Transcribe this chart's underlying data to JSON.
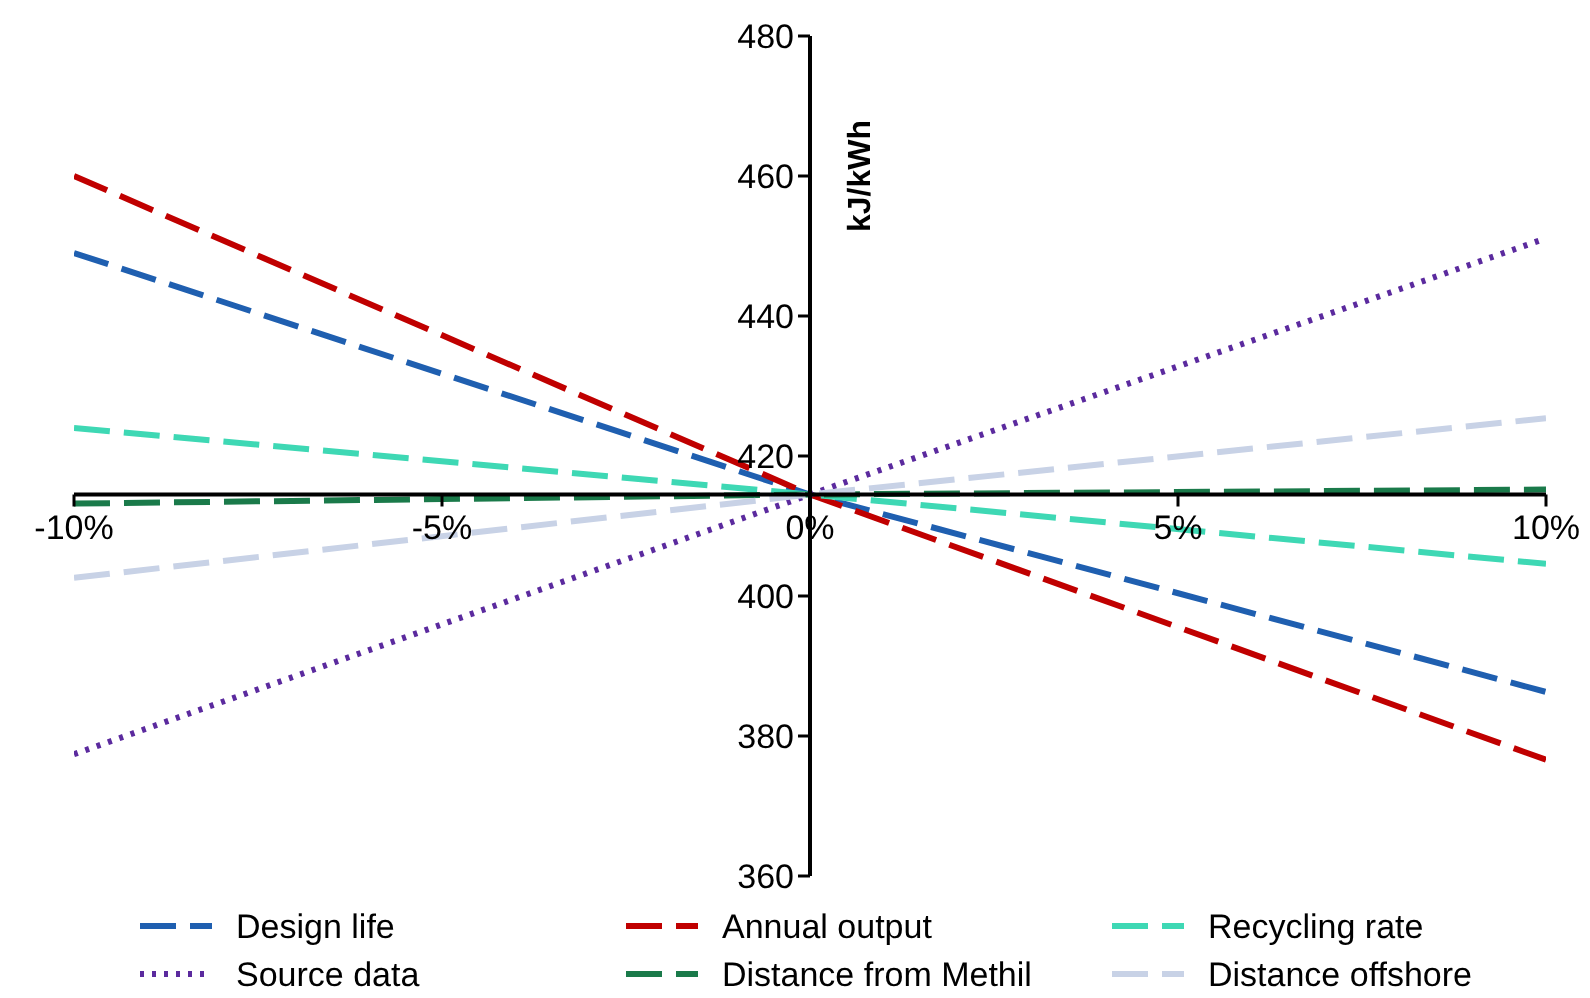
{
  "chart_data": {
    "type": "line",
    "ylabel": "kJ/kWh",
    "x": [
      -10,
      0,
      10
    ],
    "xlim": [
      -10,
      10
    ],
    "xticks": [
      {
        "value": -10,
        "label": "-10%"
      },
      {
        "value": -5,
        "label": "-5%"
      },
      {
        "value": 0,
        "label": "0%"
      },
      {
        "value": 5,
        "label": "5%"
      },
      {
        "value": 10,
        "label": "10%"
      }
    ],
    "ylim": [
      360,
      480
    ],
    "yticks": [
      360,
      380,
      400,
      420,
      440,
      460,
      480
    ],
    "grid": false,
    "legend": "bottom",
    "marker": "none",
    "series": [
      {
        "name": "Design life",
        "color": "#1f5fb0",
        "line_style": "dashed",
        "values": [
          449,
          414.5,
          386.3
        ]
      },
      {
        "name": "Annual output",
        "color": "#c00000",
        "line_style": "dashed",
        "values": [
          460,
          414.5,
          376.6
        ]
      },
      {
        "name": "Recycling rate",
        "color": "#3ed8b4",
        "line_style": "dashed",
        "values": [
          424,
          414.5,
          404.6
        ]
      },
      {
        "name": "Source data",
        "color": "#5b2a9e",
        "line_style": "dotted",
        "values": [
          377.4,
          414.5,
          451.1
        ]
      },
      {
        "name": "Distance from Methil",
        "color": "#1a7a4a",
        "line_style": "dashed",
        "values": [
          413.2,
          414.5,
          415.2
        ]
      },
      {
        "name": "Distance offshore",
        "color": "#c8d2e6",
        "line_style": "dashed",
        "values": [
          402.6,
          414.5,
          425.4
        ]
      }
    ]
  }
}
